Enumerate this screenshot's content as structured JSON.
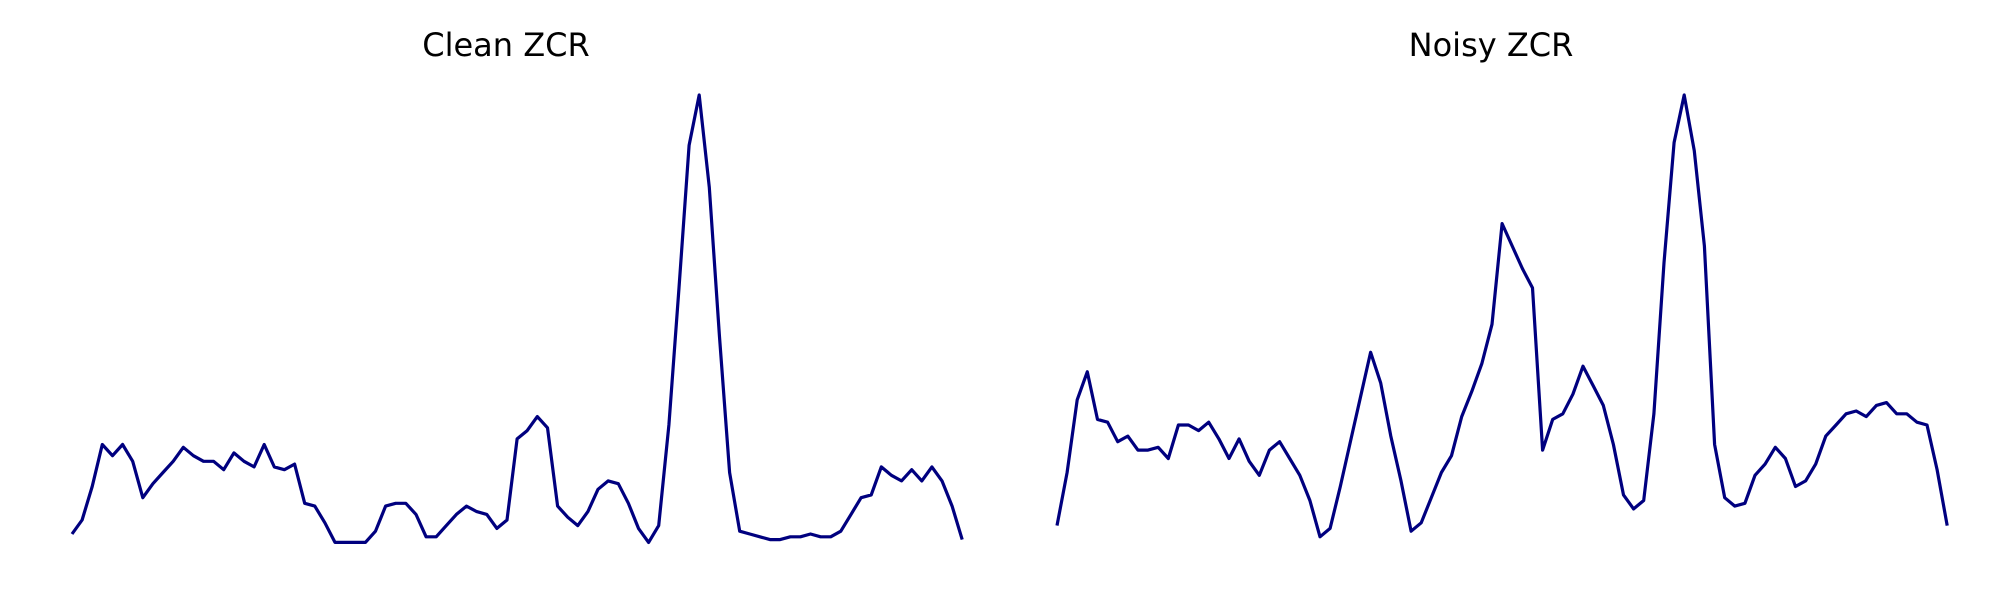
{
  "line_color": "#00007f",
  "chart_data": [
    {
      "type": "line",
      "title": "Clean ZCR",
      "xlabel": "",
      "ylabel": "",
      "axes_visible": false,
      "grid": false,
      "legend": "none",
      "xlim": [
        0,
        86
      ],
      "ylim": [
        0.028,
        0.19
      ],
      "series": [
        {
          "values": [
            0.033,
            0.038,
            0.05,
            0.065,
            0.061,
            0.065,
            0.059,
            0.046,
            0.051,
            0.055,
            0.059,
            0.064,
            0.061,
            0.059,
            0.059,
            0.056,
            0.062,
            0.059,
            0.057,
            0.065,
            0.057,
            0.056,
            0.058,
            0.044,
            0.043,
            0.037,
            0.03,
            0.03,
            0.03,
            0.03,
            0.034,
            0.043,
            0.044,
            0.044,
            0.04,
            0.032,
            0.032,
            0.036,
            0.04,
            0.043,
            0.041,
            0.04,
            0.035,
            0.038,
            0.067,
            0.07,
            0.075,
            0.071,
            0.043,
            0.039,
            0.036,
            0.041,
            0.049,
            0.052,
            0.051,
            0.044,
            0.035,
            0.03,
            0.036,
            0.072,
            0.121,
            0.172,
            0.19,
            0.157,
            0.104,
            0.055,
            0.034,
            0.033,
            0.032,
            0.031,
            0.031,
            0.032,
            0.032,
            0.033,
            0.032,
            0.032,
            0.034,
            0.04,
            0.046,
            0.047,
            0.057,
            0.054,
            0.052,
            0.056,
            0.052,
            0.057,
            0.052,
            0.043,
            0.031
          ]
        }
      ]
    },
    {
      "type": "line",
      "title": "Noisy ZCR",
      "xlabel": "",
      "ylabel": "",
      "axes_visible": false,
      "grid": false,
      "legend": "none",
      "xlim": [
        0,
        86
      ],
      "ylim": [
        0.028,
        0.19
      ],
      "series": [
        {
          "values": [
            0.036,
            0.055,
            0.081,
            0.091,
            0.074,
            0.073,
            0.066,
            0.068,
            0.063,
            0.063,
            0.064,
            0.06,
            0.072,
            0.072,
            0.07,
            0.073,
            0.067,
            0.06,
            0.067,
            0.059,
            0.054,
            0.063,
            0.066,
            0.06,
            0.054,
            0.045,
            0.032,
            0.035,
            0.05,
            0.066,
            0.082,
            0.098,
            0.087,
            0.068,
            0.052,
            0.034,
            0.037,
            0.046,
            0.055,
            0.061,
            0.075,
            0.084,
            0.094,
            0.108,
            0.144,
            0.136,
            0.128,
            0.121,
            0.063,
            0.074,
            0.076,
            0.083,
            0.093,
            0.086,
            0.079,
            0.065,
            0.047,
            0.042,
            0.045,
            0.076,
            0.13,
            0.173,
            0.19,
            0.17,
            0.136,
            0.065,
            0.046,
            0.043,
            0.044,
            0.054,
            0.058,
            0.064,
            0.06,
            0.05,
            0.052,
            0.058,
            0.068,
            0.072,
            0.076,
            0.077,
            0.075,
            0.079,
            0.08,
            0.076,
            0.076,
            0.073,
            0.072,
            0.056,
            0.036
          ]
        }
      ]
    }
  ]
}
